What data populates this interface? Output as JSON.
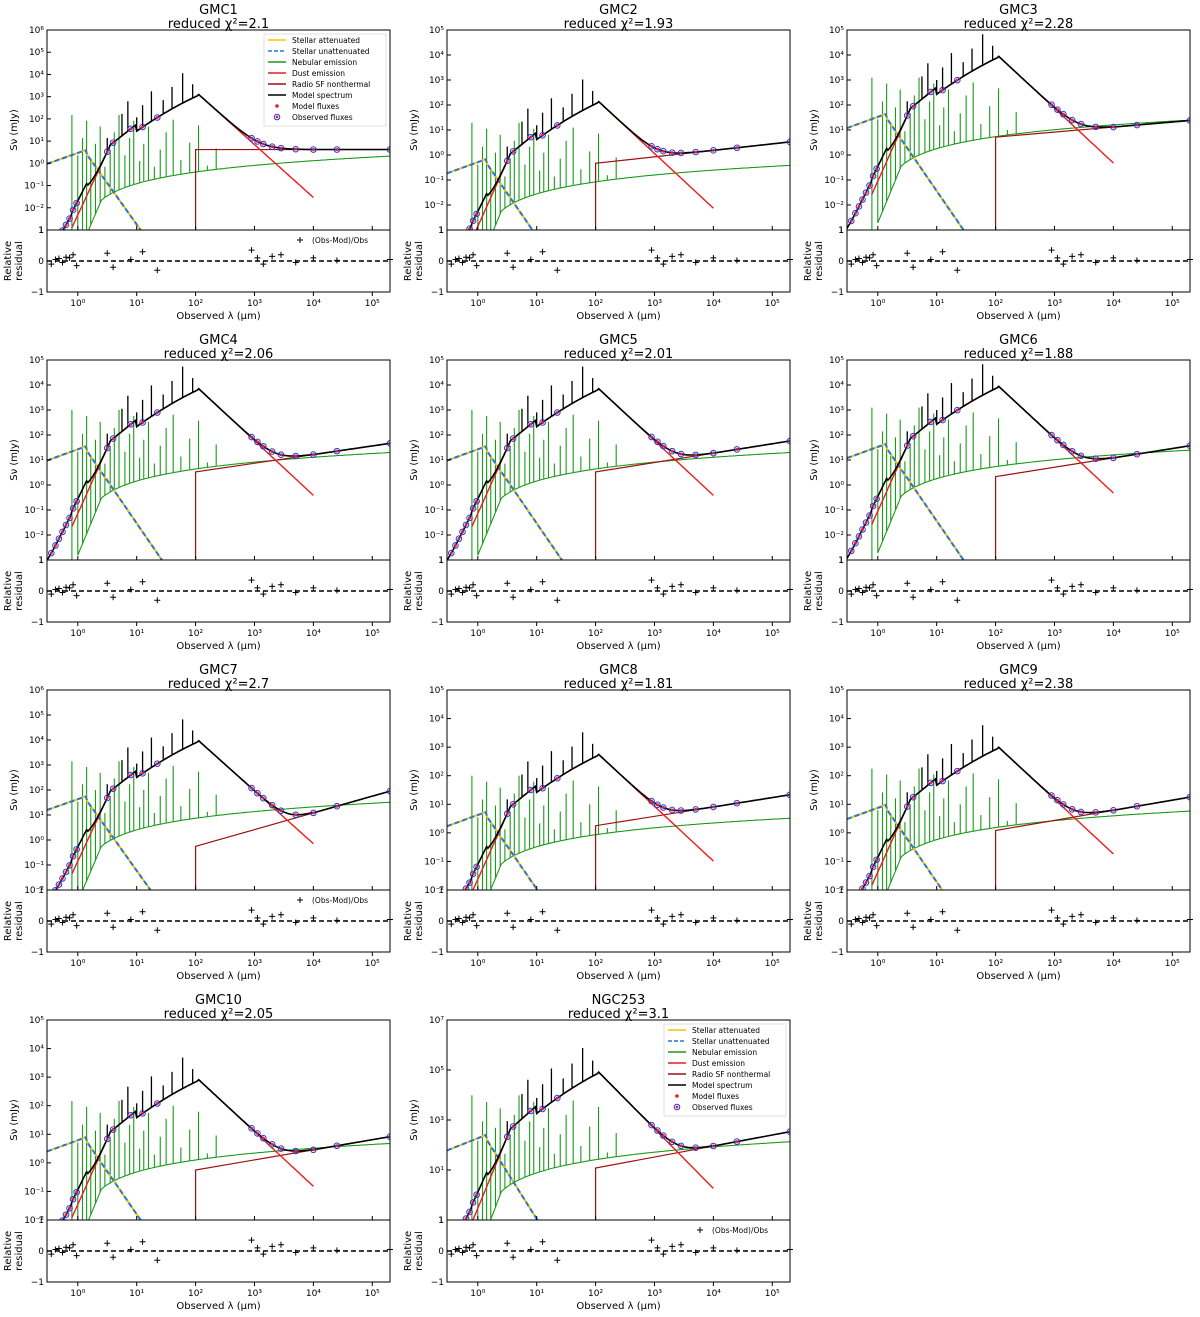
{
  "figure": {
    "x_axis_label": "Observed λ (μm)",
    "y_axis_label_top": "Sν (mJy)",
    "y_axis_label_bottom_line1": "Relative",
    "y_axis_label_bottom_line2": "residual",
    "residual_legend": "(Obs-Mod)/Obs",
    "chi_prefix": "reduced χ²="
  },
  "legend_entries": [
    {
      "key": "stellar_att",
      "label": "Stellar attenuated",
      "color": "#ffc200",
      "style": "solid"
    },
    {
      "key": "stellar_unatt",
      "label": "Stellar unattenuated",
      "color": "#1f77e0",
      "style": "dashed"
    },
    {
      "key": "nebular",
      "label": "Nebular emission",
      "color": "#1a9a1a",
      "style": "solid"
    },
    {
      "key": "dust",
      "label": "Dust emission",
      "color": "#ee1c1c",
      "style": "solid"
    },
    {
      "key": "radio",
      "label": "Radio SF nonthermal",
      "color": "#a01010",
      "style": "solid"
    },
    {
      "key": "model",
      "label": "Model spectrum",
      "color": "#000000",
      "style": "solid"
    },
    {
      "key": "model_flux",
      "label": "Model fluxes",
      "color": "#ee1c1c",
      "style": "dot"
    },
    {
      "key": "obs_flux",
      "label": "Observed fluxes",
      "color": "#2a3ad8",
      "style": "circle"
    }
  ],
  "chart_data": [
    {
      "type": "line",
      "name": "GMC1",
      "title": "GMC1",
      "chi2": "2.1",
      "xlim": [
        0.3,
        200000
      ],
      "ylim_log": [
        -2.7,
        6
      ],
      "x_ticks": [
        "10⁰",
        "10¹",
        "10²",
        "10³",
        "10⁴",
        "10⁵"
      ],
      "y_ticks": [
        "1",
        "10⁻²",
        "10⁻¹",
        "10⁰",
        "10¹",
        "10²",
        "10³",
        "10⁴",
        "10⁵",
        "10⁶"
      ],
      "peak_log_mJy": 3.2,
      "radio_log_mJy": 0.8,
      "radio_end_log_mJy": 0.8,
      "residual_ylim": [
        -1,
        1
      ],
      "residual_ticks": [
        "−1",
        "0",
        "1"
      ],
      "show_legend": true,
      "show_residual_legend": true
    },
    {
      "type": "line",
      "name": "GMC2",
      "title": "GMC2",
      "chi2": "1.93",
      "xlim": [
        0.3,
        200000
      ],
      "ylim_log": [
        -2.7,
        5.7
      ],
      "x_ticks": [
        "10⁰",
        "10¹",
        "10²",
        "10³",
        "10⁴",
        "10⁵"
      ],
      "y_ticks": [
        "1",
        "10⁻²",
        "10⁻¹",
        "10⁰",
        "10¹",
        "10²",
        "10³",
        "10⁴",
        "10⁵"
      ],
      "peak_log_mJy": 2.7,
      "radio_log_mJy": 0.1,
      "radio_end_log_mJy": 1.0,
      "residual_ylim": [
        -1,
        1
      ],
      "residual_ticks": [
        "−1",
        "0",
        "1"
      ],
      "show_legend": false,
      "show_residual_legend": false
    },
    {
      "type": "line",
      "name": "GMC3",
      "title": "GMC3",
      "chi2": "2.28",
      "xlim": [
        0.3,
        200000
      ],
      "ylim_log": [
        -2.7,
        5.7
      ],
      "x_ticks": [
        "10⁰",
        "10¹",
        "10²",
        "10³",
        "10⁴",
        "10⁵"
      ],
      "y_ticks": [
        "1",
        "10⁻²",
        "10⁻¹",
        "10⁰",
        "10¹",
        "10²",
        "10³",
        "10⁴",
        "10⁵"
      ],
      "peak_log_mJy": 4.6,
      "radio_log_mJy": 1.2,
      "radio_end_log_mJy": 1.9,
      "residual_ylim": [
        -1,
        1
      ],
      "residual_ticks": [
        "−1",
        "0",
        "1"
      ],
      "show_legend": false,
      "show_residual_legend": false
    },
    {
      "type": "line",
      "name": "GMC4",
      "title": "GMC4",
      "chi2": "2.06",
      "xlim": [
        0.3,
        200000
      ],
      "ylim_log": [
        -2.7,
        5.7
      ],
      "x_ticks": [
        "10⁰",
        "10¹",
        "10²",
        "10³",
        "10⁴",
        "10⁵"
      ],
      "y_ticks": [
        "1",
        "10⁻²",
        "10⁻¹",
        "10⁰",
        "10¹",
        "10²",
        "10³",
        "10⁴",
        "10⁵"
      ],
      "peak_log_mJy": 4.5,
      "radio_log_mJy": 1.0,
      "radio_end_log_mJy": 2.2,
      "residual_ylim": [
        -1,
        1
      ],
      "residual_ticks": [
        "−1",
        "0",
        "1"
      ],
      "show_legend": false,
      "show_residual_legend": false
    },
    {
      "type": "line",
      "name": "GMC5",
      "title": "GMC5",
      "chi2": "2.01",
      "xlim": [
        0.3,
        200000
      ],
      "ylim_log": [
        -2.7,
        5.7
      ],
      "x_ticks": [
        "10⁰",
        "10¹",
        "10²",
        "10³",
        "10⁴",
        "10⁵"
      ],
      "y_ticks": [
        "1",
        "10⁻²",
        "10⁻¹",
        "10⁰",
        "10¹",
        "10²",
        "10³",
        "10⁴",
        "10⁵"
      ],
      "peak_log_mJy": 4.5,
      "radio_log_mJy": 1.0,
      "radio_end_log_mJy": 2.3,
      "residual_ylim": [
        -1,
        1
      ],
      "residual_ticks": [
        "−1",
        "0",
        "1"
      ],
      "show_legend": false,
      "show_residual_legend": false
    },
    {
      "type": "line",
      "name": "GMC6",
      "title": "GMC6",
      "chi2": "1.88",
      "xlim": [
        0.3,
        200000
      ],
      "ylim_log": [
        -2.7,
        5.7
      ],
      "x_ticks": [
        "10⁰",
        "10¹",
        "10²",
        "10³",
        "10⁴",
        "10⁵"
      ],
      "y_ticks": [
        "1",
        "10⁻²",
        "10⁻¹",
        "10⁰",
        "10¹",
        "10²",
        "10³",
        "10⁴",
        "10⁵"
      ],
      "peak_log_mJy": 4.6,
      "radio_log_mJy": 0.8,
      "radio_end_log_mJy": 2.1,
      "residual_ylim": [
        -1,
        1
      ],
      "residual_ticks": [
        "−1",
        "0",
        "1"
      ],
      "show_legend": false,
      "show_residual_legend": false
    },
    {
      "type": "line",
      "name": "GMC7",
      "title": "GMC7",
      "chi2": "2.7",
      "xlim": [
        0.3,
        200000
      ],
      "ylim_log": [
        -2.7,
        6
      ],
      "x_ticks": [
        "10⁰",
        "10¹",
        "10²",
        "10³",
        "10⁴",
        "10⁵"
      ],
      "y_ticks": [
        "10⁻²",
        "10⁻¹",
        "10⁰",
        "10¹",
        "10²",
        "10³",
        "10⁴",
        "10⁵",
        "10⁶"
      ],
      "peak_log_mJy": 3.8,
      "radio_log_mJy": -0.8,
      "radio_end_log_mJy": 1.6,
      "residual_ylim": [
        -1,
        1
      ],
      "residual_ticks": [
        "−1",
        "0",
        "1"
      ],
      "show_legend": false,
      "show_residual_legend": true
    },
    {
      "type": "line",
      "name": "GMC8",
      "title": "GMC8",
      "chi2": "1.81",
      "xlim": [
        0.3,
        200000
      ],
      "ylim_log": [
        -2.7,
        5.7
      ],
      "x_ticks": [
        "10⁰",
        "10¹",
        "10²",
        "10³",
        "10⁴",
        "10⁵"
      ],
      "y_ticks": [
        "10⁻²",
        "10⁻¹",
        "10⁰",
        "10¹",
        "10²",
        "10³",
        "10⁴",
        "10⁵"
      ],
      "peak_log_mJy": 3.0,
      "radio_log_mJy": 0.0,
      "radio_end_log_mJy": 1.3,
      "residual_ylim": [
        -1,
        1
      ],
      "residual_ticks": [
        "−1",
        "0",
        "1"
      ],
      "show_legend": false,
      "show_residual_legend": false
    },
    {
      "type": "line",
      "name": "GMC9",
      "title": "GMC9",
      "chi2": "2.38",
      "xlim": [
        0.3,
        200000
      ],
      "ylim_log": [
        -2.7,
        5.7
      ],
      "x_ticks": [
        "10⁰",
        "10¹",
        "10²",
        "10³",
        "10⁴",
        "10⁵"
      ],
      "y_ticks": [
        "10⁻²",
        "10⁻¹",
        "10⁰",
        "10¹",
        "10²",
        "10³",
        "10⁴",
        "10⁵"
      ],
      "peak_log_mJy": 3.3,
      "radio_log_mJy": -0.2,
      "radio_end_log_mJy": 1.2,
      "residual_ylim": [
        -1,
        1
      ],
      "residual_ticks": [
        "−1",
        "0",
        "1"
      ],
      "show_legend": false,
      "show_residual_legend": false
    },
    {
      "type": "line",
      "name": "GMC10",
      "title": "GMC10",
      "chi2": "2.05",
      "xlim": [
        0.3,
        200000
      ],
      "ylim_log": [
        -2.7,
        5.7
      ],
      "x_ticks": [
        "10⁰",
        "10¹",
        "10²",
        "10³",
        "10⁴",
        "10⁵"
      ],
      "y_ticks": [
        "10⁻²",
        "10⁻¹",
        "10⁰",
        "10¹",
        "10²",
        "10³",
        "10⁴",
        "10⁵"
      ],
      "peak_log_mJy": 3.2,
      "radio_log_mJy": -0.6,
      "radio_end_log_mJy": 0.8,
      "residual_ylim": [
        -1,
        1
      ],
      "residual_ticks": [
        "−1",
        "0",
        "1"
      ],
      "show_legend": false,
      "show_residual_legend": false
    },
    {
      "type": "line",
      "name": "NGC253",
      "title": "NGC253",
      "chi2": "3.1",
      "xlim": [
        0.3,
        200000
      ],
      "ylim_log": [
        0,
        7.7
      ],
      "x_ticks": [
        "10⁰",
        "10¹",
        "10²",
        "10³",
        "10⁴",
        "10⁵"
      ],
      "y_ticks": [
        "1",
        "10¹",
        "10³",
        "10⁵",
        "10⁷"
      ],
      "peak_log_mJy": 5.7,
      "radio_log_mJy": 2.0,
      "radio_end_log_mJy": 3.4,
      "residual_ylim": [
        -1,
        1
      ],
      "residual_ticks": [
        "−1",
        "0",
        "1"
      ],
      "show_legend": true,
      "show_residual_legend": true
    }
  ]
}
